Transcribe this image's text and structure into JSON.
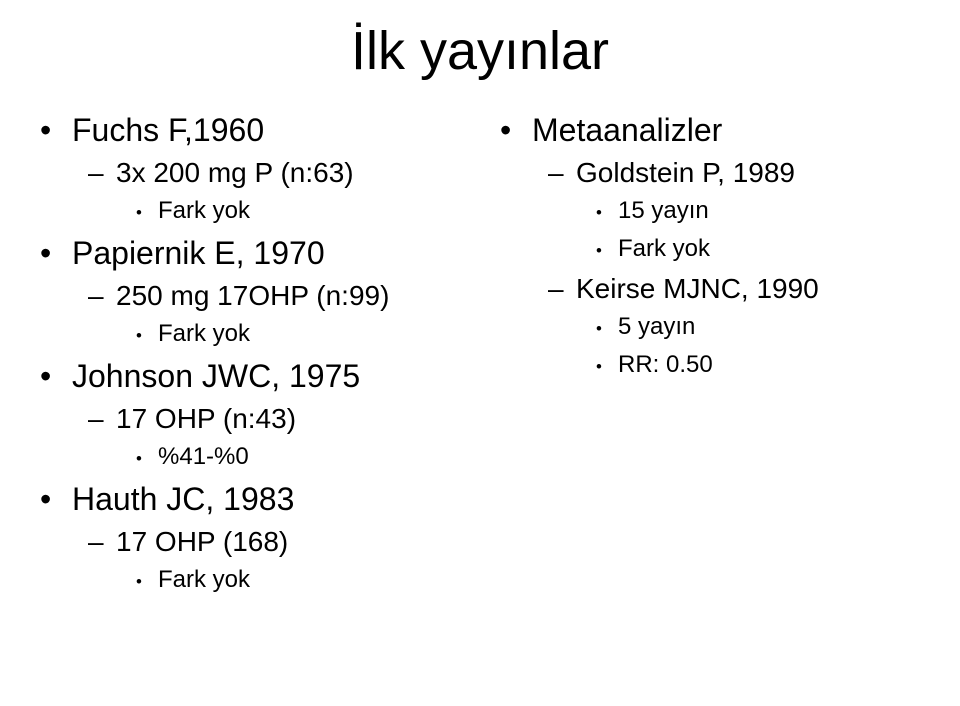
{
  "title": "İlk yayınlar",
  "left": {
    "items": [
      {
        "text": "Fuchs F,1960",
        "sub": [
          {
            "text": "3x 200 mg P (n:63)",
            "sub": [
              {
                "text": "Fark yok"
              }
            ]
          }
        ]
      },
      {
        "text": "Papiernik E, 1970",
        "sub": [
          {
            "text": "250 mg 17OHP (n:99)",
            "sub": [
              {
                "text": "Fark yok"
              }
            ]
          }
        ]
      },
      {
        "text": "Johnson JWC, 1975",
        "sub": [
          {
            "text": "17 OHP (n:43)",
            "sub": [
              {
                "text": "%41-%0"
              }
            ]
          }
        ]
      },
      {
        "text": "Hauth JC, 1983",
        "sub": [
          {
            "text": "17 OHP (168)",
            "sub": [
              {
                "text": "Fark yok"
              }
            ]
          }
        ]
      }
    ]
  },
  "right": {
    "items": [
      {
        "text": "Metaanalizler",
        "sub": [
          {
            "text": "Goldstein P, 1989",
            "sub": [
              {
                "text": "15 yayın"
              },
              {
                "text": "Fark yok"
              }
            ]
          },
          {
            "text": "Keirse MJNC, 1990",
            "sub": [
              {
                "text": "5 yayın"
              },
              {
                "text": "RR: 0.50"
              }
            ]
          }
        ]
      }
    ]
  }
}
